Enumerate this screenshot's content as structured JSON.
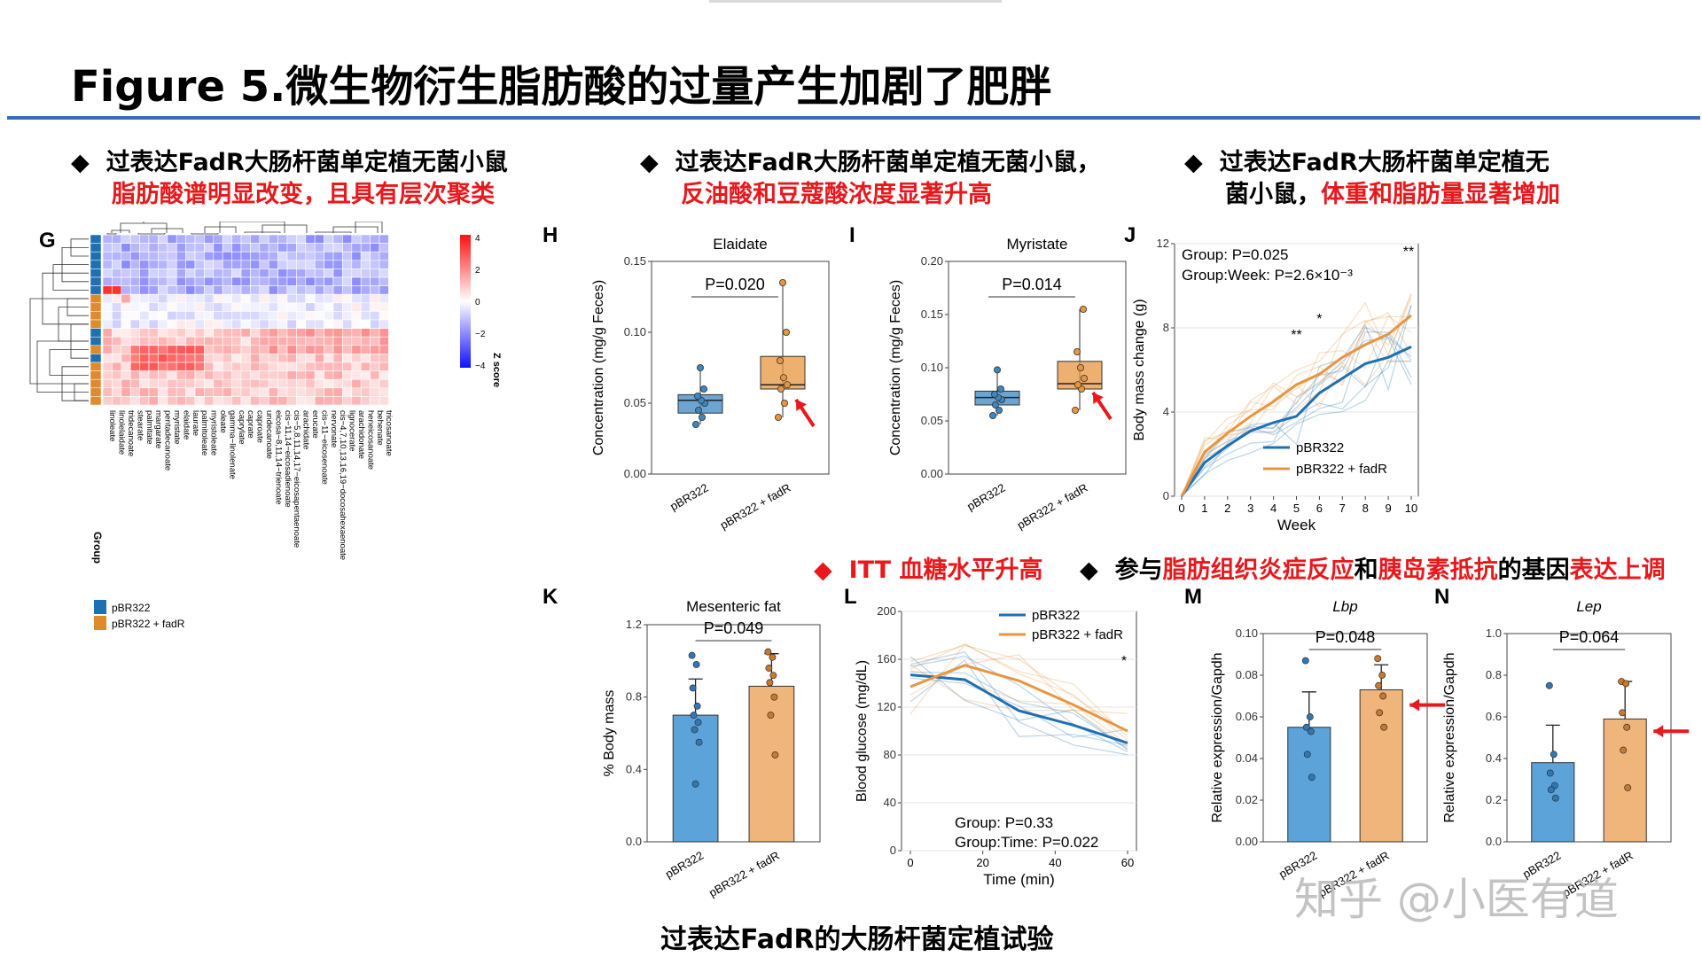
{
  "title": "Figure 5.微生物衍生脂肪酸的过量产生加剧了肥胖",
  "bullets": {
    "b1_line1": "过表达FadR大肠杆菌单定植无菌小鼠",
    "b1_line2": "脂肪酸谱明显改变，且具有层次聚类",
    "b2_line1": "过表达FadR大肠杆菌单定植无菌小鼠，",
    "b2_line2": "反油酸和豆蔻酸浓度显著升高",
    "b3_line1": "过表达FadR大肠杆菌单定植无",
    "b3_line2a": "菌小鼠，",
    "b3_line2b": "体重和脂肪量显著增加",
    "b4": "ITT 血糖水平升高",
    "b5_a": "参与",
    "b5_b": "脂肪组织炎症反应",
    "b5_c": "和",
    "b5_d": "胰岛素抵抗",
    "b5_e": "的基因",
    "b5_f": "表达上调"
  },
  "diamond": "◆",
  "panels": {
    "G": "G",
    "H": "H",
    "I": "I",
    "J": "J",
    "K": "K",
    "L": "L",
    "M": "M",
    "N": "N"
  },
  "heatmap": {
    "legend_title": "Z score",
    "legend_ticks": [
      "4",
      "2",
      "0",
      "−2",
      "−4"
    ],
    "group_label": "Group",
    "group_legend": [
      "pBR322",
      "pBR322 + fadR"
    ],
    "columns": [
      "linoleate",
      "linolelaidate",
      "tridecanoate",
      "stearate",
      "palmitate",
      "margarate",
      "pentadecanoate",
      "myristate",
      "elaidate",
      "laurate",
      "palmitoleate",
      "myristoleate",
      "oleate",
      "gamma−linolenate",
      "caprylate",
      "caprate",
      "caproate",
      "undecanoate",
      "eicosa−8,11,14−trienoate",
      "cis−11,14−eicosadienoate",
      "cis−5,8,11,14,17−eicosapentaenoate",
      "arachidate",
      "erucate",
      "cis−11−eicosenoate",
      "nervonate",
      "cis−4,7,10,13,16,19−docosahexaenoate",
      "lignocerate",
      "arachidonate",
      "heneicosanoate",
      "behenate",
      "tricosanoate"
    ]
  },
  "chart_data": [
    {
      "type": "box",
      "panel": "H",
      "title": "Elaidate",
      "ylabel": "Concentration (mg/g Feces)",
      "categories": [
        "pBR322",
        "pBR322 + fadR"
      ],
      "yticks": [
        "0.00",
        "0.05",
        "0.10",
        "0.15"
      ],
      "ylim": [
        0,
        0.15
      ],
      "pvalue": "P=0.020",
      "groups": [
        {
          "name": "pBR322",
          "q1": 0.043,
          "median": 0.052,
          "q3": 0.056,
          "min": 0.035,
          "max": 0.075,
          "points": [
            0.035,
            0.04,
            0.045,
            0.05,
            0.052,
            0.055,
            0.06,
            0.075
          ]
        },
        {
          "name": "pBR322 + fadR",
          "q1": 0.06,
          "median": 0.063,
          "q3": 0.083,
          "min": 0.04,
          "max": 0.135,
          "points": [
            0.04,
            0.05,
            0.06,
            0.063,
            0.068,
            0.08,
            0.1,
            0.135
          ]
        }
      ],
      "colors": [
        "#3d86c0",
        "#e8953f"
      ]
    },
    {
      "type": "box",
      "panel": "I",
      "title": "Myristate",
      "ylabel": "Concentration (mg/g Feces)",
      "categories": [
        "pBR322",
        "pBR322 + fadR"
      ],
      "yticks": [
        "0.00",
        "0.05",
        "0.10",
        "0.15",
        "0.20"
      ],
      "ylim": [
        0,
        0.2
      ],
      "pvalue": "P=0.014",
      "groups": [
        {
          "name": "pBR322",
          "q1": 0.065,
          "median": 0.072,
          "q3": 0.078,
          "min": 0.055,
          "max": 0.098,
          "points": [
            0.055,
            0.06,
            0.065,
            0.07,
            0.072,
            0.075,
            0.08,
            0.098
          ]
        },
        {
          "name": "pBR322 + fadR",
          "q1": 0.08,
          "median": 0.085,
          "q3": 0.106,
          "min": 0.06,
          "max": 0.155,
          "points": [
            0.06,
            0.08,
            0.084,
            0.09,
            0.1,
            0.115,
            0.155
          ]
        }
      ],
      "colors": [
        "#3d86c0",
        "#e8953f"
      ]
    },
    {
      "type": "line",
      "panel": "J",
      "ylabel": "Body mass change (g)",
      "xlabel": "Week",
      "x": [
        0,
        1,
        2,
        3,
        4,
        5,
        6,
        7,
        8,
        9,
        10
      ],
      "yticks": [
        "0",
        "4",
        "8",
        "12"
      ],
      "ylim": [
        0,
        12
      ],
      "annotations": [
        "Group: P=0.025",
        "Group:Week: P=2.6×10⁻³",
        "**",
        "*",
        "**"
      ],
      "series": [
        {
          "name": "pBR322",
          "values": [
            0,
            1.6,
            2.4,
            3.1,
            3.5,
            3.8,
            4.9,
            5.6,
            6.3,
            6.6,
            7.1
          ]
        },
        {
          "name": "pBR322 + fadR",
          "values": [
            0,
            2.1,
            3.0,
            3.8,
            4.5,
            5.3,
            5.8,
            6.6,
            7.2,
            7.7,
            8.6
          ]
        }
      ],
      "colors": [
        "#1f6fb2",
        "#e8953f"
      ]
    },
    {
      "type": "bar",
      "panel": "K",
      "title": "Mesenteric fat",
      "ylabel": "% Body mass",
      "categories": [
        "pBR322",
        "pBR322 + fadR"
      ],
      "yticks": [
        "0.0",
        "0.4",
        "0.8",
        "1.2"
      ],
      "ylim": [
        0,
        1.2
      ],
      "pvalue": "P=0.049",
      "values": [
        0.7,
        0.86
      ],
      "errors": [
        0.2,
        0.18
      ],
      "points": [
        [
          1.03,
          0.98,
          0.85,
          0.75,
          0.7,
          0.66,
          0.62,
          0.55,
          0.32
        ],
        [
          1.05,
          1.02,
          0.96,
          0.92,
          0.88,
          0.8,
          0.7,
          0.48
        ]
      ],
      "colors": [
        "#5ba3d8",
        "#f0b57a"
      ]
    },
    {
      "type": "line",
      "panel": "L",
      "ylabel": "Blood glucose (mg/dL)",
      "xlabel": "Time (min)",
      "x": [
        0,
        15,
        30,
        45,
        60
      ],
      "xticks": [
        "0",
        "20",
        "40",
        "60"
      ],
      "yticks": [
        "0",
        "40",
        "80",
        "120",
        "160",
        "200"
      ],
      "ylim": [
        0,
        200
      ],
      "annotations": [
        "Group: P=0.33",
        "Group:Time: P=0.022",
        "*"
      ],
      "series": [
        {
          "name": "pBR322",
          "values": [
            147,
            143,
            117,
            105,
            90
          ]
        },
        {
          "name": "pBR322 + fadR",
          "values": [
            137,
            155,
            142,
            122,
            100
          ]
        }
      ],
      "colors": [
        "#1f6fb2",
        "#e8953f"
      ]
    },
    {
      "type": "bar",
      "panel": "M",
      "title": "Lbp",
      "ylabel": "Relative expression/Gapdh",
      "categories": [
        "pBR322",
        "pBR322 + fadR"
      ],
      "yticks": [
        "0.00",
        "0.02",
        "0.04",
        "0.06",
        "0.08",
        "0.10"
      ],
      "ylim": [
        0,
        0.1
      ],
      "pvalue": "P=0.048",
      "values": [
        0.055,
        0.073
      ],
      "errors": [
        0.017,
        0.012
      ],
      "points": [
        [
          0.087,
          0.06,
          0.055,
          0.053,
          0.042,
          0.031
        ],
        [
          0.088,
          0.08,
          0.075,
          0.07,
          0.062,
          0.055
        ]
      ],
      "colors": [
        "#5ba3d8",
        "#f0b57a"
      ]
    },
    {
      "type": "bar",
      "panel": "N",
      "title": "Lep",
      "ylabel": "Relative expression/Gapdh",
      "categories": [
        "pBR322",
        "pBR322 + fadR"
      ],
      "yticks": [
        "0.0",
        "0.2",
        "0.4",
        "0.6",
        "0.8",
        "1.0"
      ],
      "ylim": [
        0,
        1.0
      ],
      "pvalue": "P=0.064",
      "values": [
        0.38,
        0.59
      ],
      "errors": [
        0.18,
        0.18
      ],
      "points": [
        [
          0.75,
          0.42,
          0.33,
          0.27,
          0.25,
          0.21
        ],
        [
          0.77,
          0.76,
          0.62,
          0.55,
          0.44,
          0.26
        ]
      ],
      "colors": [
        "#5ba3d8",
        "#f0b57a"
      ]
    }
  ],
  "caption": "过表达FadR的大肠杆菌定植试验",
  "watermark": "知乎 @小医有道"
}
